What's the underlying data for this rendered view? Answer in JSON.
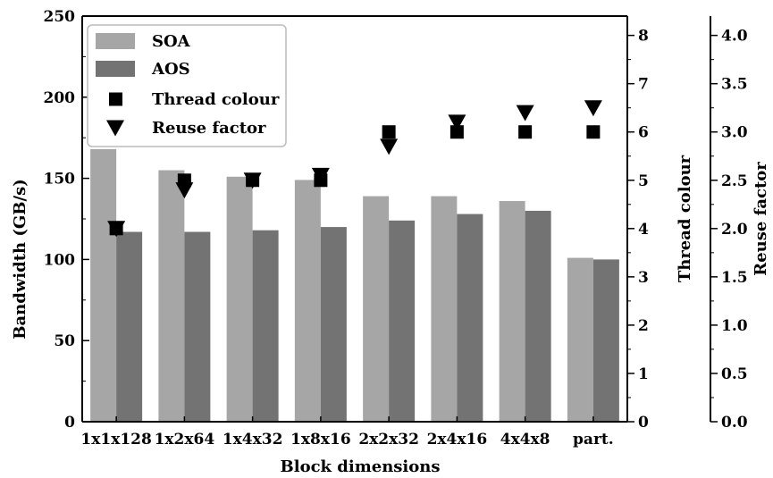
{
  "chart_data": {
    "type": "bar",
    "title": "",
    "categories": [
      "1x1x128",
      "1x2x64",
      "1x4x32",
      "1x8x16",
      "2x2x32",
      "2x4x16",
      "4x4x8",
      "part."
    ],
    "xlabel": "Block dimensions",
    "ylabel": "Bandwidth (GB/s)",
    "ylim": [
      0,
      250
    ],
    "yticks": [
      "0",
      "50",
      "100",
      "150",
      "200",
      "250"
    ],
    "series": [
      {
        "name": "SOA",
        "kind": "bar",
        "axis": "left",
        "color": "#a6a6a6",
        "values": [
          168,
          155,
          151,
          149,
          139,
          139,
          136,
          101
        ]
      },
      {
        "name": "AOS",
        "kind": "bar",
        "axis": "left",
        "color": "#737373",
        "values": [
          117,
          117,
          118,
          120,
          124,
          128,
          130,
          100
        ]
      },
      {
        "name": "Thread colour",
        "kind": "marker",
        "marker": "square",
        "axis": "right1",
        "color": "#000000",
        "values": [
          4,
          5,
          5,
          5,
          6,
          6,
          6,
          6
        ]
      },
      {
        "name": "Reuse factor",
        "kind": "marker",
        "marker": "triangle-down",
        "axis": "right2",
        "color": "#000000",
        "values": [
          2.0,
          2.4,
          2.5,
          2.55,
          2.85,
          3.1,
          3.2,
          3.25
        ]
      }
    ],
    "right_axis_1": {
      "label": "Thread colour",
      "range": [
        0,
        8.4
      ],
      "ticks": [
        "0",
        "1",
        "2",
        "3",
        "4",
        "5",
        "6",
        "7",
        "8"
      ]
    },
    "right_axis_2": {
      "label": "Reuse factor",
      "range": [
        0,
        4.2
      ],
      "ticks": [
        "0.0",
        "0.5",
        "1.0",
        "1.5",
        "2.0",
        "2.5",
        "3.0",
        "3.5",
        "4.0"
      ]
    },
    "legend": {
      "placement": "top-left",
      "entries": [
        "SOA",
        "AOS",
        "Thread colour",
        "Reuse factor"
      ]
    },
    "grid": false
  }
}
